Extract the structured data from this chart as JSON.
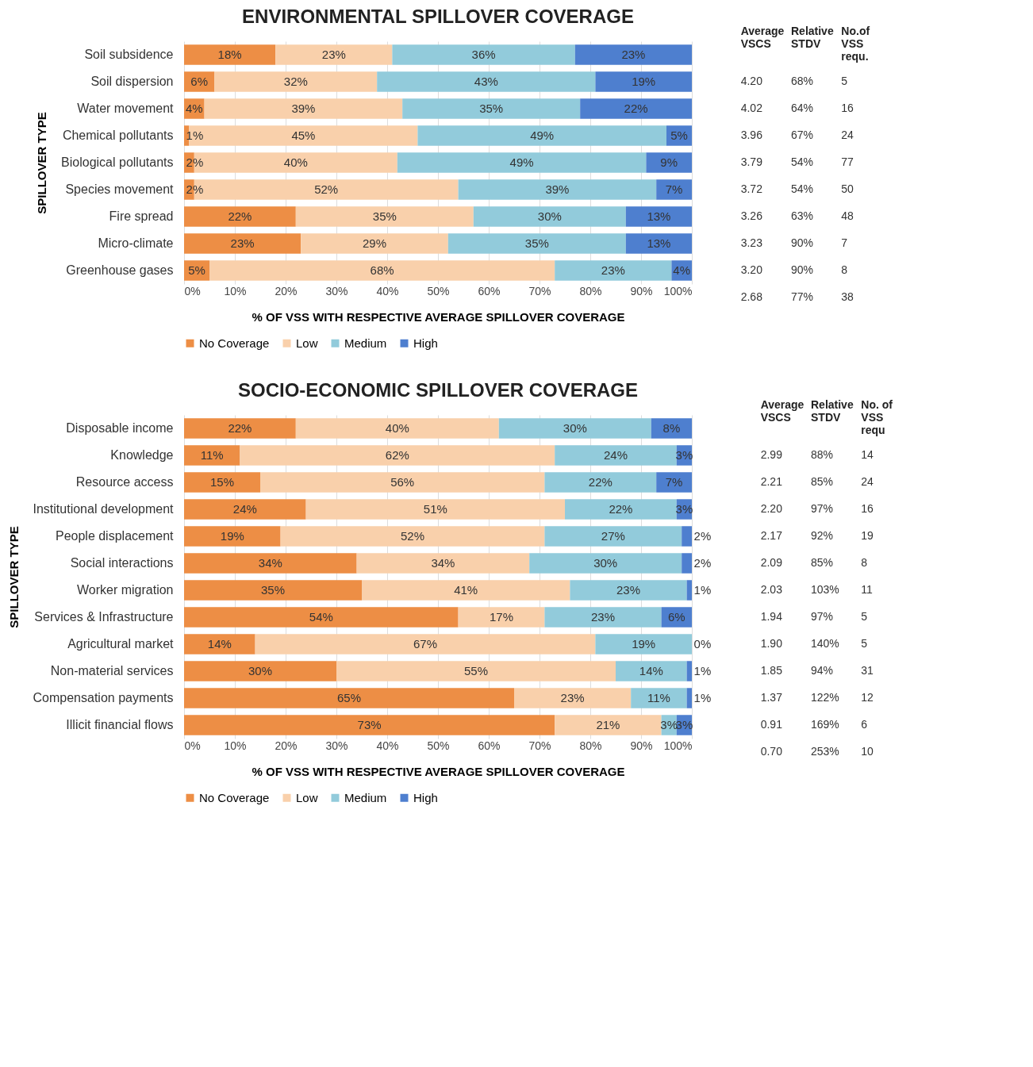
{
  "chart_data": [
    {
      "type": "bar",
      "orientation": "horizontal",
      "stacked": true,
      "title": "ENVIRONMENTAL SPILLOVER COVERAGE",
      "xlabel": "% OF VSS WITH RESPECTIVE AVERAGE SPILLOVER COVERAGE",
      "ylabel": "SPILLOVER TYPE",
      "legend": "bottom",
      "grid": "x",
      "categories": [
        "Soil subsidence",
        "Soil dispersion",
        "Water movement",
        "Chemical pollutants",
        "Biological pollutants",
        "Species movement",
        "Fire spread",
        "Micro-climate",
        "Greenhouse gases"
      ],
      "xlim": [
        0,
        100
      ],
      "xticks": [
        {
          "value": 0,
          "label": "0%"
        },
        {
          "value": 10,
          "label": "10%"
        },
        {
          "value": 20,
          "label": "20%"
        },
        {
          "value": 30,
          "label": "30%"
        },
        {
          "value": 40,
          "label": "40%"
        },
        {
          "value": 50,
          "label": "50%"
        },
        {
          "value": 60,
          "label": "60%"
        },
        {
          "value": 70,
          "label": "70%"
        },
        {
          "value": 80,
          "label": "80%"
        },
        {
          "value": 90,
          "label": "90%"
        },
        {
          "value": 100,
          "label": "100%"
        }
      ],
      "series": [
        {
          "name": "No Coverage",
          "color": "#ed8e45",
          "values": [
            18,
            6,
            4,
            1,
            2,
            2,
            22,
            23,
            5
          ],
          "value_labels": [
            "18%",
            "6%",
            "4%",
            "1%",
            "2%",
            "2%",
            "22%",
            "23%",
            "5%"
          ]
        },
        {
          "name": "Low",
          "color": "#f9d0ab",
          "values": [
            23,
            32,
            39,
            45,
            40,
            52,
            35,
            29,
            68
          ],
          "value_labels": [
            "23%",
            "32%",
            "39%",
            "45%",
            "40%",
            "52%",
            "35%",
            "29%",
            "68%"
          ]
        },
        {
          "name": "Medium",
          "color": "#92cbdb",
          "values": [
            36,
            43,
            35,
            49,
            49,
            39,
            30,
            35,
            23
          ],
          "value_labels": [
            "36%",
            "43%",
            "35%",
            "49%",
            "49%",
            "39%",
            "30%",
            "35%",
            "23%"
          ]
        },
        {
          "name": "High",
          "color": "#4e7fcf",
          "values": [
            23,
            19,
            22,
            5,
            9,
            7,
            13,
            13,
            4
          ],
          "value_labels": [
            "23%",
            "19%",
            "22%",
            "5%",
            "9%",
            "7%",
            "13%",
            "13%",
            "4%"
          ]
        }
      ]
    },
    {
      "type": "other",
      "annotations": [
        "Average\nVSCS",
        "Relative\nSTDV",
        "No.of\nVSS\nrequ.",
        "4.20",
        "68%",
        "5",
        "4.02",
        "64%",
        "16",
        "3.96",
        "67%",
        "24",
        "3.79",
        "54%",
        "77",
        "3.72",
        "54%",
        "50",
        "3.26",
        "63%",
        "48",
        "3.23",
        "90%",
        "7",
        "3.20",
        "90%",
        "8",
        "2.68",
        "77%",
        "38"
      ]
    },
    {
      "type": "bar",
      "orientation": "horizontal",
      "stacked": true,
      "title": "SOCIO-ECONOMIC SPILLOVER COVERAGE",
      "xlabel": "% OF VSS WITH RESPECTIVE AVERAGE SPILLOVER COVERAGE",
      "ylabel": "SPILLOVER TYPE",
      "legend": "bottom",
      "grid": "x",
      "categories": [
        "Disposable income",
        "Knowledge",
        "Resource access",
        "Institutional development",
        "People displacement",
        "Social interactions",
        "Worker migration",
        "Services & Infrastructure",
        "Agricultural market",
        "Non-material services",
        "Compensation payments",
        "Illicit financial flows"
      ],
      "xlim": [
        0,
        100
      ],
      "xticks": [
        {
          "value": 0,
          "label": "0%"
        },
        {
          "value": 10,
          "label": "10%"
        },
        {
          "value": 20,
          "label": "20%"
        },
        {
          "value": 30,
          "label": "30%"
        },
        {
          "value": 40,
          "label": "40%"
        },
        {
          "value": 50,
          "label": "50%"
        },
        {
          "value": 60,
          "label": "60%"
        },
        {
          "value": 70,
          "label": "70%"
        },
        {
          "value": 80,
          "label": "80%"
        },
        {
          "value": 90,
          "label": "90%"
        },
        {
          "value": 100,
          "label": "100%"
        }
      ],
      "series": [
        {
          "name": "No Coverage",
          "color": "#ed8e45",
          "values": [
            22,
            11,
            15,
            24,
            19,
            34,
            35,
            54,
            14,
            30,
            65,
            73
          ],
          "value_labels": [
            "22%",
            "11%",
            "15%",
            "24%",
            "19%",
            "34%",
            "35%",
            "54%",
            "14%",
            "30%",
            "65%",
            "73%"
          ]
        },
        {
          "name": "Low",
          "color": "#f9d0ab",
          "values": [
            40,
            62,
            56,
            51,
            52,
            34,
            41,
            17,
            67,
            55,
            23,
            21
          ],
          "value_labels": [
            "40%",
            "62%",
            "56%",
            "51%",
            "52%",
            "34%",
            "41%",
            "17%",
            "67%",
            "55%",
            "23%",
            "21%"
          ]
        },
        {
          "name": "Medium",
          "color": "#92cbdb",
          "values": [
            30,
            24,
            22,
            22,
            27,
            30,
            23,
            23,
            19,
            14,
            11,
            3
          ],
          "value_labels": [
            "30%",
            "24%",
            "22%",
            "22%",
            "27%",
            "30%",
            "23%",
            "23%",
            "19%",
            "14%",
            "11%",
            "3%"
          ]
        },
        {
          "name": "High",
          "color": "#4e7fcf",
          "values": [
            8,
            3,
            7,
            3,
            2,
            2,
            1,
            6,
            0,
            1,
            1,
            3
          ],
          "value_labels": [
            "8%",
            "3%",
            "7%",
            "3%",
            "2%",
            "2%",
            "1%",
            "6%",
            "0%",
            "1%",
            "1%",
            "3%"
          ]
        }
      ]
    },
    {
      "type": "other",
      "annotations": [
        "Average\nVSCS",
        "Relative\nSTDV",
        "No. of\nVSS\nrequ",
        "2.99",
        "88%",
        "14",
        "2.21",
        "85%",
        "24",
        "2.20",
        "97%",
        "16",
        "2.17",
        "92%",
        "19",
        "2.09",
        "85%",
        "8",
        "2.03",
        "103%",
        "11",
        "1.94",
        "97%",
        "5",
        "1.90",
        "140%",
        "5",
        "1.85",
        "94%",
        "31",
        "1.37",
        "122%",
        "12",
        "0.91",
        "169%",
        "6",
        "0.70",
        "253%",
        "10"
      ]
    }
  ]
}
